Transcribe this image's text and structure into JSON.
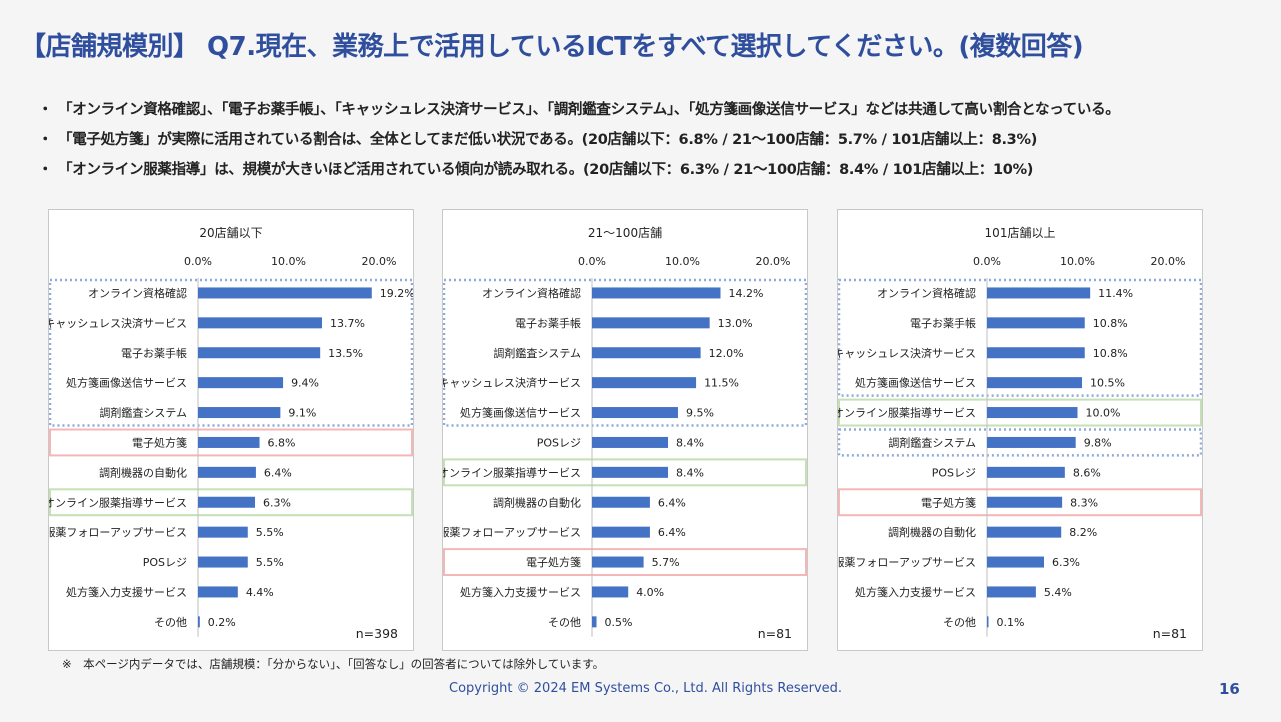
{
  "title": "【店舗規模別】 Q7.現在、業務上で活用しているICTをすべて選択してください。(複数回答)",
  "bullets": [
    "「オンライン資格確認」、「電子お薬手帳」、「キャッシュレス決済サービス」、「調剤鑑査システム」、「処方箋画像送信サービス」などは共通して高い割合となっている。",
    "「電子処方箋」が実際に活用されている割合は、全体としてまだ低い状況である。(20店舗以下：6.8% / 21〜100店舗：5.7% / 101店舗以上：8.3%)",
    "「オンライン服薬指導」は、規模が大きいほど活用されている傾向が読み取れる。(20店舗以下：6.3% / 21〜100店舗：8.4% / 101店舗以上：10%)"
  ],
  "bullet_marker": "・",
  "footnote": "※　本ページ内データでは、店舗規模：「分からない」、「回答なし」の回答者については除外しています。",
  "copyright": "Copyright © 2024 EM Systems Co., Ltd. All Rights Reserved.",
  "page_number": "16",
  "colors": {
    "title": "#2f4f9e",
    "bar": "#4472c4",
    "highlight_common": "#8eaadb",
    "highlight_eprescription": "#f4b6b6",
    "highlight_online": "#c5e0b4"
  },
  "chart_data": [
    {
      "type": "bar",
      "orientation": "horizontal",
      "title": "20店舗以下",
      "n_label": "n=398",
      "xlim": [
        0,
        20
      ],
      "xticks": [
        "0.0%",
        "10.0%",
        "20.0%"
      ],
      "categories": [
        "オンライン資格確認",
        "キャッシュレス決済サービス",
        "電子お薬手帳",
        "処方箋画像送信サービス",
        "調剤鑑査システム",
        "電子処方箋",
        "調剤機器の自動化",
        "オンライン服薬指導サービス",
        "服薬フォローアップサービス",
        "POSレジ",
        "処方箋入力支援サービス",
        "その他"
      ],
      "values": [
        19.2,
        13.7,
        13.5,
        9.4,
        9.1,
        6.8,
        6.4,
        6.3,
        5.5,
        5.5,
        4.4,
        0.2
      ],
      "value_labels": [
        "19.2%",
        "13.7%",
        "13.5%",
        "9.4%",
        "9.1%",
        "6.8%",
        "6.4%",
        "6.3%",
        "5.5%",
        "5.5%",
        "4.4%",
        "0.2%"
      ],
      "highlights": [
        {
          "kind": "common",
          "from": 0,
          "to": 4
        },
        {
          "kind": "eprescription",
          "from": 5,
          "to": 5
        },
        {
          "kind": "online",
          "from": 7,
          "to": 7
        }
      ]
    },
    {
      "type": "bar",
      "orientation": "horizontal",
      "title": "21〜100店舗",
      "n_label": "n=81",
      "xlim": [
        0,
        20
      ],
      "xticks": [
        "0.0%",
        "10.0%",
        "20.0%"
      ],
      "categories": [
        "オンライン資格確認",
        "電子お薬手帳",
        "調剤鑑査システム",
        "キャッシュレス決済サービス",
        "処方箋画像送信サービス",
        "POSレジ",
        "オンライン服薬指導サービス",
        "調剤機器の自動化",
        "服薬フォローアップサービス",
        "電子処方箋",
        "処方箋入力支援サービス",
        "その他"
      ],
      "values": [
        14.2,
        13.0,
        12.0,
        11.5,
        9.5,
        8.4,
        8.4,
        6.4,
        6.4,
        5.7,
        4.0,
        0.5
      ],
      "value_labels": [
        "14.2%",
        "13.0%",
        "12.0%",
        "11.5%",
        "9.5%",
        "8.4%",
        "8.4%",
        "6.4%",
        "6.4%",
        "5.7%",
        "4.0%",
        "0.5%"
      ],
      "highlights": [
        {
          "kind": "common",
          "from": 0,
          "to": 4
        },
        {
          "kind": "online",
          "from": 6,
          "to": 6
        },
        {
          "kind": "eprescription",
          "from": 9,
          "to": 9
        }
      ]
    },
    {
      "type": "bar",
      "orientation": "horizontal",
      "title": "101店舗以上",
      "n_label": "n=81",
      "xlim": [
        0,
        20
      ],
      "xticks": [
        "0.0%",
        "10.0%",
        "20.0%"
      ],
      "categories": [
        "オンライン資格確認",
        "電子お薬手帳",
        "キャッシュレス決済サービス",
        "処方箋画像送信サービス",
        "オンライン服薬指導サービス",
        "調剤鑑査システム",
        "POSレジ",
        "電子処方箋",
        "調剤機器の自動化",
        "服薬フォローアップサービス",
        "処方箋入力支援サービス",
        "その他"
      ],
      "values": [
        11.4,
        10.8,
        10.8,
        10.5,
        10.0,
        9.8,
        8.6,
        8.3,
        8.2,
        6.3,
        5.4,
        0.1
      ],
      "value_labels": [
        "11.4%",
        "10.8%",
        "10.8%",
        "10.5%",
        "10.0%",
        "9.8%",
        "8.6%",
        "8.3%",
        "8.2%",
        "6.3%",
        "5.4%",
        "0.1%"
      ],
      "highlights": [
        {
          "kind": "common",
          "from": 0,
          "to": 3
        },
        {
          "kind": "online",
          "from": 4,
          "to": 4
        },
        {
          "kind": "common",
          "from": 5,
          "to": 5
        },
        {
          "kind": "eprescription",
          "from": 7,
          "to": 7
        }
      ]
    }
  ]
}
